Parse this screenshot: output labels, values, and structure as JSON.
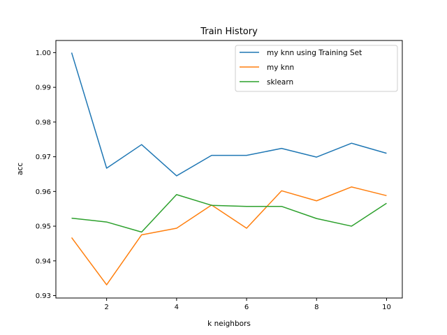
{
  "chart_data": {
    "type": "line",
    "title": "Train History",
    "xlabel": "k neighbors",
    "ylabel": "acc",
    "x": [
      1,
      2,
      3,
      4,
      5,
      6,
      7,
      8,
      9,
      10
    ],
    "xlim": [
      0.55,
      10.45
    ],
    "ylim": [
      0.9293,
      1.0035
    ],
    "xticks": [
      2,
      4,
      6,
      8,
      10
    ],
    "xtick_labels": [
      "2",
      "4",
      "6",
      "8",
      "10"
    ],
    "yticks": [
      0.93,
      0.94,
      0.95,
      0.96,
      0.97,
      0.98,
      0.99,
      1.0
    ],
    "ytick_labels": [
      "0.93",
      "0.94",
      "0.95",
      "0.96",
      "0.97",
      "0.98",
      "0.99",
      "1.00"
    ],
    "grid": false,
    "legend_position": "top-right",
    "series": [
      {
        "name": "my knn using Training Set",
        "color": "#1f77b4",
        "values": [
          1.0,
          0.9667,
          0.9735,
          0.9645,
          0.9704,
          0.9704,
          0.9724,
          0.9699,
          0.9739,
          0.971
        ]
      },
      {
        "name": "my knn",
        "color": "#ff7f0e",
        "values": [
          0.9467,
          0.9331,
          0.9475,
          0.9494,
          0.9561,
          0.9494,
          0.9602,
          0.9573,
          0.9613,
          0.9588
        ]
      },
      {
        "name": "sklearn",
        "color": "#2ca02c",
        "values": [
          0.9523,
          0.9512,
          0.9483,
          0.9591,
          0.956,
          0.9557,
          0.9557,
          0.9522,
          0.95,
          0.9566
        ]
      }
    ]
  }
}
